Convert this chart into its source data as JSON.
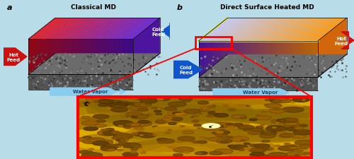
{
  "bg_color": "#b8dce8",
  "panel_a_title": "Classical MD",
  "panel_b_title": "Direct Surface Heated MD",
  "label_a": "a",
  "label_b": "b",
  "label_c": "c",
  "hot_feed_label": "Hot\nFeed",
  "cold_feed_label": "Cold\nFeed",
  "water_vapor_label": "Water Vapor",
  "hot_color": "#cc1111",
  "cold_color": "#1155cc",
  "water_vapor_color": "#88ccee",
  "cnt_bg_color": "#ddaa00",
  "red_color": "#dd0000",
  "n_strips": 80
}
